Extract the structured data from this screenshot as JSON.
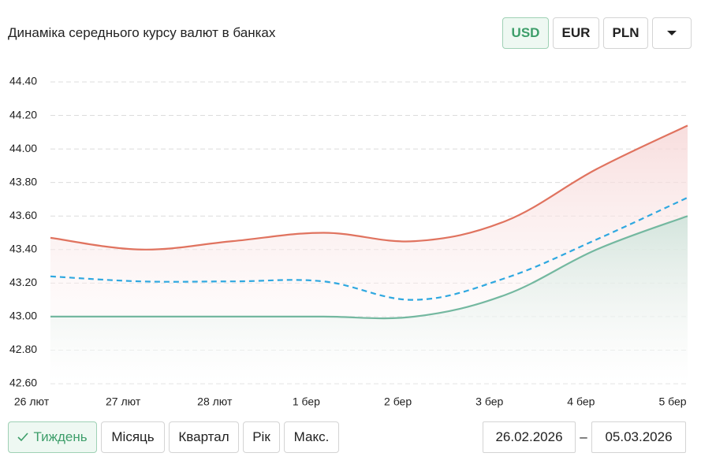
{
  "chart_data": {
    "type": "line",
    "title": "Динаміка середнього курсу валют в банках",
    "categories": [
      "26 лют",
      "27 лют",
      "28 лют",
      "1 бер",
      "2 бер",
      "3 бер",
      "4 бер",
      "5 бер"
    ],
    "series": [
      {
        "color": "#e0735f",
        "values": [
          43.47,
          43.4,
          43.45,
          43.5,
          43.45,
          43.57,
          43.88,
          44.14
        ],
        "fill": true
      },
      {
        "color": "#2fa8e0",
        "values": [
          43.24,
          43.21,
          43.21,
          43.21,
          43.1,
          43.23,
          43.46,
          43.71
        ],
        "dash": true
      },
      {
        "color": "#74b8a0",
        "values": [
          43.0,
          43.0,
          43.0,
          43.0,
          43.0,
          43.13,
          43.4,
          43.6
        ],
        "fill": true
      }
    ],
    "ylim": [
      42.6,
      44.4
    ],
    "yticks": [
      {
        "value": 42.6,
        "label": "42.60"
      },
      {
        "value": 42.8,
        "label": "42.80"
      },
      {
        "value": 43.0,
        "label": "43.00"
      },
      {
        "value": 43.2,
        "label": "43.20"
      },
      {
        "value": 43.4,
        "label": "43.40"
      },
      {
        "value": 43.6,
        "label": "43.60"
      },
      {
        "value": 43.8,
        "label": "43.80"
      },
      {
        "value": 44.0,
        "label": "44.00"
      },
      {
        "value": 44.2,
        "label": "44.20"
      },
      {
        "value": 44.4,
        "label": "44.40"
      }
    ],
    "grid": true
  },
  "currency_buttons": [
    "USD",
    "EUR",
    "PLN"
  ],
  "period_buttons": [
    "Тиждень",
    "Місяць",
    "Квартал",
    "Рік",
    "Макс."
  ],
  "date_from": "26.02.2026",
  "date_separator": "–",
  "date_to": "05.03.2026"
}
